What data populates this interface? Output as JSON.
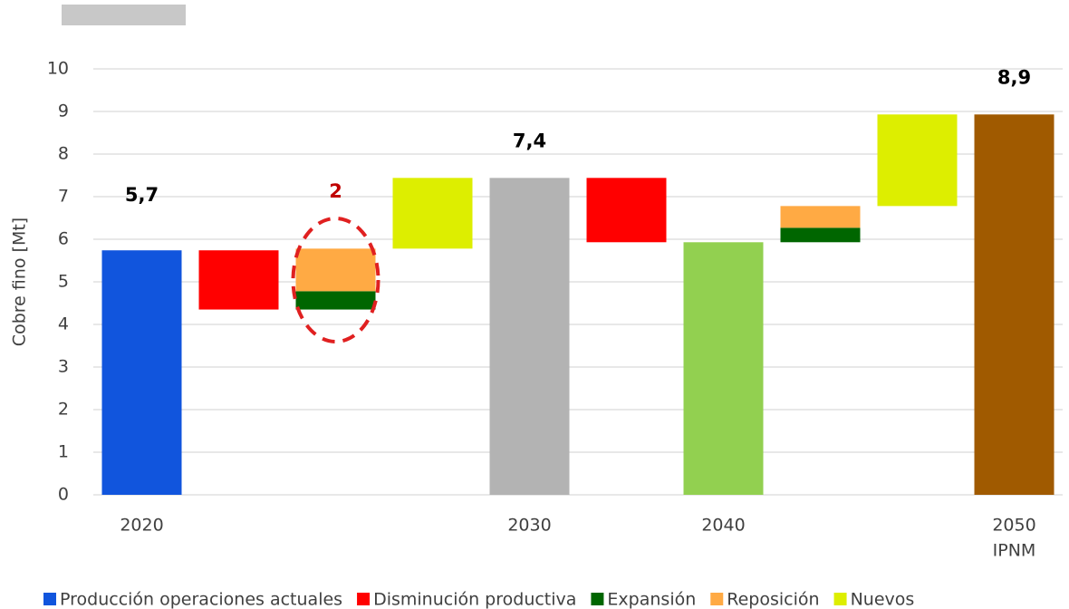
{
  "chart_data": {
    "type": "waterfall",
    "y_label": "Cobre fino [Mt]",
    "categories": [
      "2020",
      null,
      null,
      null,
      "2030",
      null,
      "2040",
      null,
      null,
      [
        "2050",
        "IPNM"
      ]
    ],
    "series": [
      {
        "name": "Producción operaciones actuales",
        "color": "#1155dd",
        "values": [
          5.74,
          null,
          null,
          null,
          null,
          null,
          null,
          null,
          null,
          null
        ],
        "value_labels": [
          "5,7",
          null,
          null,
          null,
          null,
          null,
          null,
          null,
          null,
          null
        ]
      },
      {
        "name": "Disminución productiva",
        "color": "#ff0000",
        "values": [
          null,
          -1.39,
          null,
          null,
          null,
          -1.51,
          null,
          null,
          null,
          null
        ]
      },
      {
        "name": "Expansión",
        "color": "#006600",
        "values": [
          null,
          null,
          0.43,
          null,
          null,
          null,
          null,
          0.34,
          null,
          null
        ]
      },
      {
        "name": "Reposición",
        "color": "#ffaa44",
        "values": [
          null,
          null,
          1.0,
          null,
          null,
          null,
          null,
          0.51,
          null,
          null
        ]
      },
      {
        "name": "Nuevos",
        "color": "#ddee00",
        "values": [
          null,
          null,
          null,
          1.66,
          null,
          null,
          null,
          null,
          2.15,
          null
        ]
      }
    ],
    "totals": {
      "values": [
        null,
        null,
        null,
        null,
        7.44,
        null,
        5.93,
        null,
        null,
        8.93
      ],
      "colors": [
        null,
        null,
        null,
        null,
        "#b3b3b3",
        null,
        "#92d050",
        null,
        null,
        "#a05a00"
      ],
      "value_labels": [
        null,
        null,
        null,
        null,
        "7,4",
        null,
        null,
        null,
        null,
        "8,9"
      ]
    },
    "annotation": {
      "text": "2",
      "category": 2,
      "color": "#c00000"
    },
    "ylim": [
      0,
      10
    ],
    "yticks": [
      0,
      1,
      2,
      3,
      4,
      5,
      6,
      7,
      8,
      9,
      10
    ],
    "grid": true
  }
}
